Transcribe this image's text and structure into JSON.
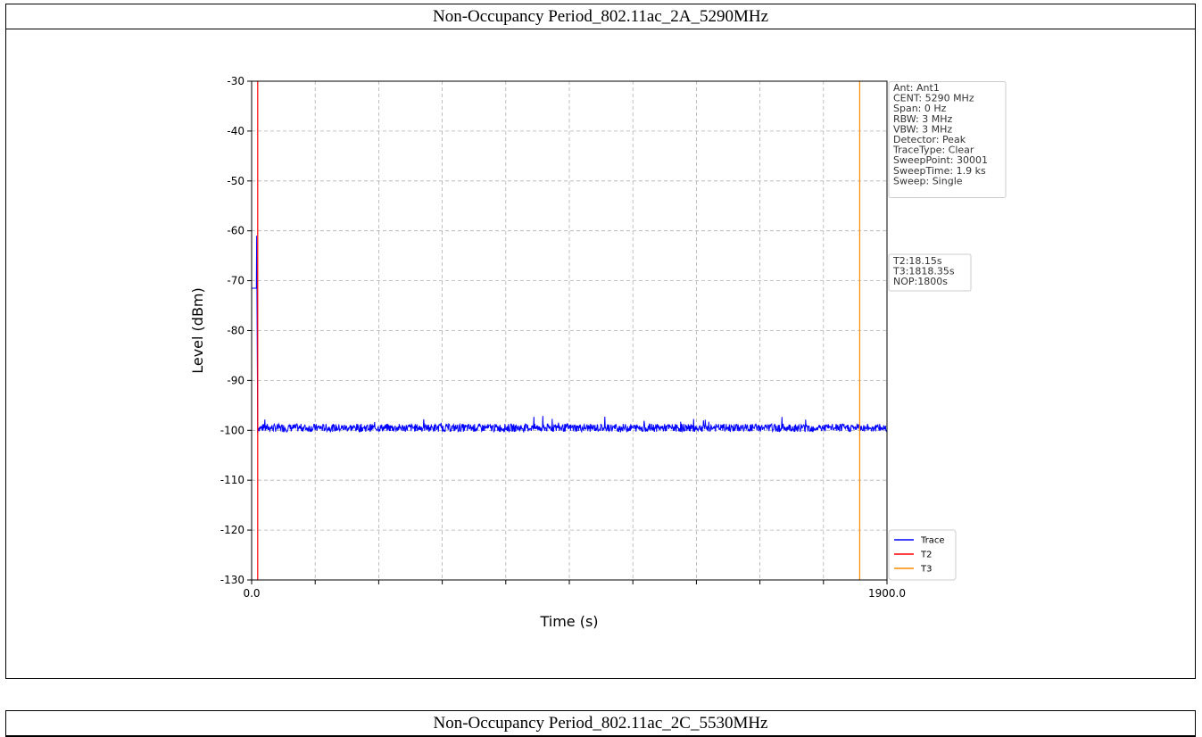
{
  "panels": [
    {
      "title": "Non-Occupancy Period_802.11ac_2A_5290MHz"
    },
    {
      "title": "Non-Occupancy Period_802.11ac_2C_5530MHz"
    }
  ],
  "chart_data": {
    "type": "line",
    "title": "",
    "xlabel": "Time (s)",
    "ylabel": "Level (dBm)",
    "xlim": [
      0,
      1900
    ],
    "ylim": [
      -130,
      -30
    ],
    "x_tick_labels": [
      "0.0",
      "1900.0"
    ],
    "y_ticks": [
      -30,
      -40,
      -50,
      -60,
      -70,
      -80,
      -90,
      -100,
      -110,
      -120,
      -130
    ],
    "grid": true,
    "noise_floor_dbm": -99.5,
    "burst_segment": {
      "x_start": 0,
      "x_end": 18.15,
      "level_dbm": -71.5,
      "peak_dbm": -61
    },
    "series": [
      {
        "name": "Trace",
        "color": "#0000ff"
      },
      {
        "name": "T2",
        "color": "#ff0000",
        "x": 18.15
      },
      {
        "name": "T3",
        "color": "#ff8c00",
        "x": 1818.35
      }
    ],
    "info_box": [
      "Ant: Ant1",
      "CENT: 5290 MHz",
      "Span: 0 Hz",
      "RBW: 3 MHz",
      "VBW: 3 MHz",
      "Detector: Peak",
      "TraceType: Clear",
      "SweepPoint: 30001",
      "SweepTime: 1.9 ks",
      "Sweep: Single"
    ],
    "timing_box": [
      "T2:18.15s",
      "T3:1818.35s",
      "NOP:1800s"
    ],
    "legend_position": "lower right"
  }
}
